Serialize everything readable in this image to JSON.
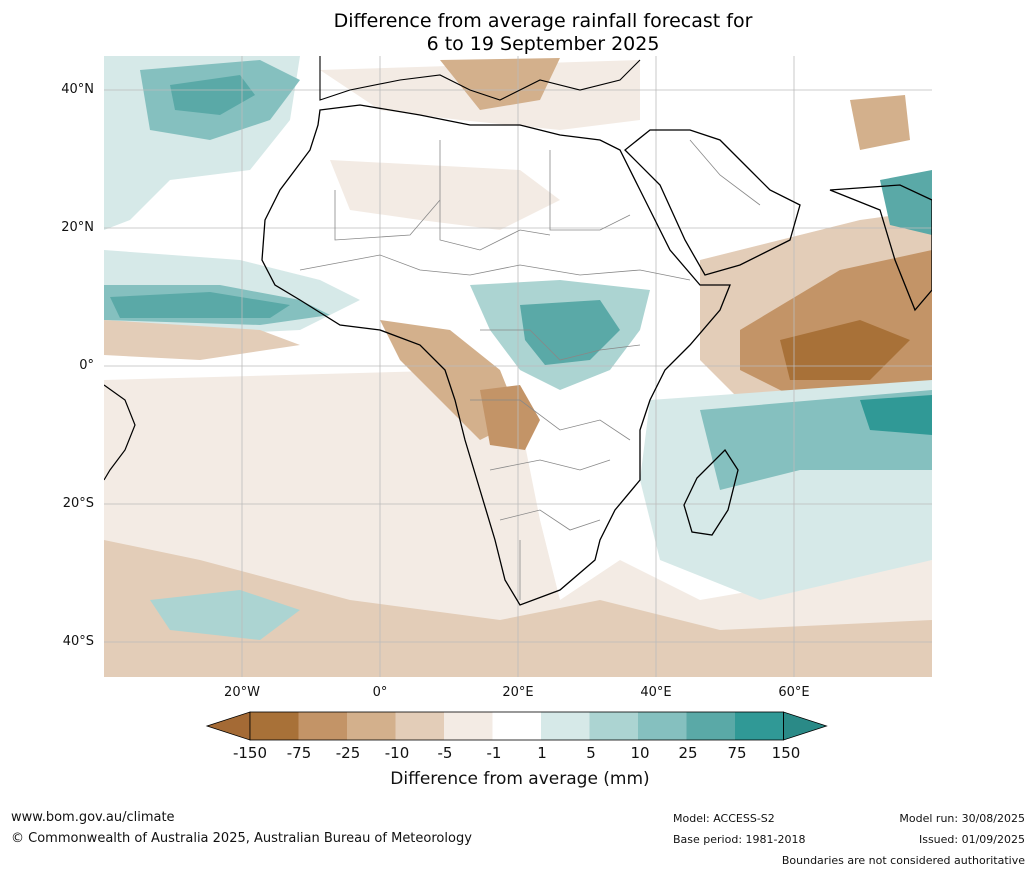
{
  "title": {
    "line1": "Difference from average rainfall forecast for",
    "line2": "6 to 19 September 2025"
  },
  "map": {
    "region": "Africa",
    "latitude_labels": [
      "40°N",
      "20°N",
      "0°",
      "20°S",
      "40°S"
    ],
    "longitude_labels": [
      "20°W",
      "0°",
      "20°E",
      "40°E",
      "60°E"
    ],
    "colors": {
      "ocean_default": "#ffffff",
      "land": "#ffffff",
      "coastline": "#000000",
      "borders": "#888888",
      "gridlines": "#bbbbbb"
    }
  },
  "colorbar": {
    "ticks": [
      "-150",
      "-75",
      "-25",
      "-10",
      "-5",
      "-1",
      "1",
      "5",
      "10",
      "25",
      "75",
      "150"
    ],
    "colors": [
      "#a46a35",
      "#a87138",
      "#c39467",
      "#d3b08c",
      "#e3cdb8",
      "#f3ebe4",
      "#ffffff",
      "#d6e9e8",
      "#acd4d2",
      "#85c0bf",
      "#5aa9a7",
      "#309996",
      "#2a8a87"
    ],
    "label": "Difference from average (mm)"
  },
  "footer": {
    "website": "www.bom.gov.au/climate",
    "copyright": "© Commonwealth of Australia 2025, Australian Bureau of Meteorology",
    "model": "Model: ACCESS-S2",
    "base_period": "Base period: 1981-2018",
    "model_run": "Model run: 30/08/2025",
    "issued": "Issued: 01/09/2025",
    "disclaimer": "Boundaries are not considered authoritative"
  }
}
